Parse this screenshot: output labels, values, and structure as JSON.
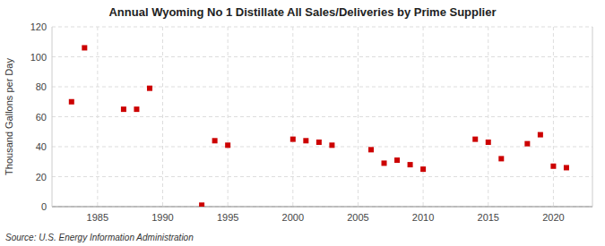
{
  "chart_data": {
    "type": "scatter",
    "title": "Annual Wyoming No 1 Distillate All Sales/Deliveries by Prime Supplier",
    "y_label": "Thousand Gallons per Day",
    "annotations": [
      "Source: U.S. Energy Information Administration"
    ],
    "x": [
      1983,
      1984,
      1987,
      1988,
      1989,
      1993,
      1994,
      1995,
      2000,
      2001,
      2002,
      2003,
      2006,
      2007,
      2008,
      2009,
      2010,
      2014,
      2015,
      2016,
      2018,
      2019,
      2020,
      2021
    ],
    "values": [
      70,
      106,
      65,
      65,
      79,
      1,
      44,
      41,
      45,
      44,
      43,
      41,
      38,
      29,
      31,
      28,
      25,
      45,
      43,
      32,
      42,
      48,
      27,
      26
    ],
    "color": "#cc0000",
    "marker": "square",
    "xlim": [
      1981.5,
      2023
    ],
    "xticks": [
      1985,
      1990,
      1995,
      2000,
      2005,
      2010,
      2015,
      2020
    ],
    "ylim": [
      0,
      120
    ],
    "yticks": [
      0,
      20,
      40,
      60,
      80,
      100,
      120
    ],
    "grid": true
  }
}
